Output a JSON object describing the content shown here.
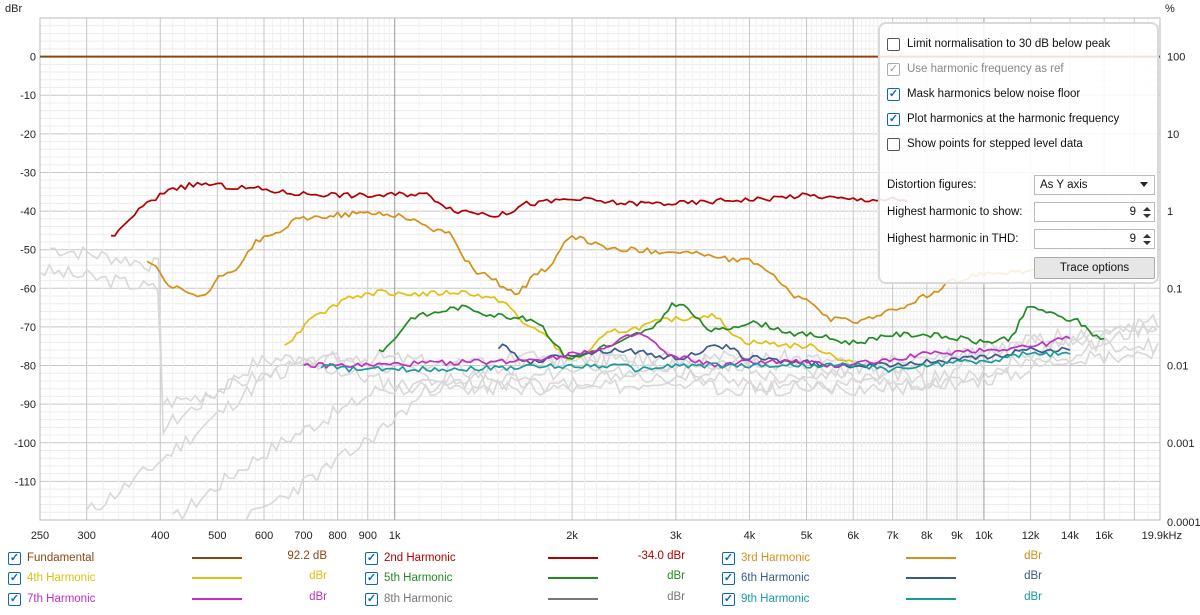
{
  "chart_data": {
    "type": "line",
    "ylabel_left": "dBr",
    "ylabel_right": "%",
    "xunit": "Hz",
    "xscale": "log",
    "xlim": [
      250,
      19900
    ],
    "ylim": [
      -120,
      10
    ],
    "x_ticks": [
      "250",
      "300",
      "400",
      "500",
      "600",
      "700",
      "800",
      "900",
      "1k",
      "2k",
      "3k",
      "4k",
      "5k",
      "6k",
      "7k",
      "8k",
      "9k",
      "10k",
      "12k",
      "14k",
      "16k",
      "19.9kHz"
    ],
    "y_ticks_left": [
      "0",
      "-10",
      "-20",
      "-30",
      "-40",
      "-50",
      "-60",
      "-70",
      "-80",
      "-90",
      "-100",
      "-110"
    ],
    "y_ticks_right": [
      "100",
      "10",
      "1",
      "0.1",
      "0.01",
      "0.001",
      "0.0001"
    ],
    "grid": true,
    "series": [
      {
        "name": "Fundamental",
        "color": "#8b4513",
        "x": [
          250,
          19900
        ],
        "y": [
          0,
          0
        ]
      },
      {
        "name": "2nd Harmonic",
        "color": "#b00000",
        "x": [
          330,
          350,
          380,
          420,
          470,
          550,
          700,
          900,
          1100,
          1300,
          1500,
          1700,
          2000,
          2500,
          3000,
          4000,
          5000,
          6000,
          7000,
          7400
        ],
        "y": [
          -47,
          -43,
          -38,
          -34,
          -33,
          -34,
          -35.5,
          -36,
          -35.5,
          -40,
          -41,
          -38,
          -37,
          -38,
          -38,
          -37,
          -36,
          -37,
          -37,
          -37.5
        ]
      },
      {
        "name": "3rd Harmonic",
        "color": "#d4901a",
        "x": [
          380,
          420,
          470,
          520,
          600,
          700,
          800,
          900,
          1000,
          1200,
          1400,
          1600,
          1800,
          2000,
          2400,
          3000,
          4000,
          5000,
          5500,
          6000,
          7000,
          8000,
          9000,
          10000,
          12000,
          14000
        ],
        "y": [
          -53,
          -60,
          -62,
          -56,
          -47,
          -42,
          -41,
          -40.5,
          -41,
          -45,
          -56,
          -61,
          -55,
          -47,
          -50,
          -50.5,
          -53,
          -63,
          -68,
          -68.5,
          -66,
          -62,
          -58,
          -56,
          -55.5,
          -56
        ]
      },
      {
        "name": "4th Harmonic",
        "color": "#e0c010",
        "x": [
          650,
          750,
          850,
          950,
          1100,
          1300,
          1500,
          1700,
          2000,
          2400,
          3000,
          3400,
          4000,
          5000,
          6000
        ],
        "y": [
          -74,
          -66,
          -62,
          -61,
          -61.5,
          -61,
          -63,
          -70,
          -78,
          -71,
          -68,
          -67,
          -74,
          -75,
          -79
        ]
      },
      {
        "name": "5th Harmonic",
        "color": "#228b22",
        "x": [
          940,
          1100,
          1300,
          1500,
          1700,
          2000,
          2300,
          2700,
          3000,
          3500,
          4000,
          5000,
          6000,
          7000,
          8000,
          9000,
          10000,
          11000,
          12000,
          14000,
          16000
        ],
        "y": [
          -76,
          -67,
          -65,
          -67,
          -68,
          -78,
          -75,
          -71,
          -64,
          -71,
          -69,
          -72,
          -74,
          -72,
          -72,
          -73,
          -74,
          -73,
          -65,
          -68,
          -73
        ]
      },
      {
        "name": "6th Harmonic",
        "color": "#3a5a8a",
        "x": [
          1500,
          1700,
          2000,
          2400,
          3000,
          3600,
          4000,
          4800,
          5500,
          6500,
          8000,
          10000,
          12000,
          14000
        ],
        "y": [
          -75,
          -79,
          -77,
          -76,
          -78,
          -75,
          -78,
          -79,
          -80,
          -80,
          -79,
          -78,
          -76,
          -76
        ]
      },
      {
        "name": "7th Harmonic",
        "color": "#c030c0",
        "x": [
          700,
          800,
          1500,
          1800,
          2200,
          2600,
          3000,
          3600,
          4000,
          4800,
          5500,
          6500,
          8000,
          10000,
          12000,
          14000
        ],
        "y": [
          -80,
          -80,
          -79,
          -78,
          -76,
          -72,
          -78,
          -80,
          -79,
          -79,
          -80,
          -79,
          -77,
          -76,
          -75,
          -73
        ]
      },
      {
        "name": "9th Harmonic",
        "color": "#1a9a9a",
        "x": [
          750,
          850,
          1000,
          2400,
          2600,
          3000,
          4000,
          5000,
          6000,
          7000,
          8000,
          9000,
          10000,
          12000,
          14000
        ],
        "y": [
          -80,
          -81,
          -81,
          -80,
          -81,
          -80,
          -80,
          -80,
          -80,
          -81,
          -80,
          -79,
          -79,
          -77,
          -77
        ]
      }
    ]
  },
  "options": {
    "limit_normalisation": {
      "label": "Limit normalisation to 30 dB below peak",
      "checked": false
    },
    "use_harmonic_freq": {
      "label": "Use harmonic frequency as ref",
      "checked": true,
      "disabled": true
    },
    "mask_harmonics": {
      "label": "Mask harmonics below noise floor",
      "checked": true
    },
    "plot_harmonics": {
      "label": "Plot harmonics at the harmonic frequency",
      "checked": true
    },
    "show_points": {
      "label": "Show points for stepped level data",
      "checked": false
    },
    "distortion_figures_label": "Distortion figures:",
    "distortion_figures_value": "As Y axis",
    "highest_show_label": "Highest harmonic to show:",
    "highest_show_value": "9",
    "highest_thd_label": "Highest harmonic in THD:",
    "highest_thd_value": "9",
    "trace_options_label": "Trace options"
  },
  "legend": [
    {
      "name": "Fundamental",
      "color": "#8b4513",
      "value": "92.2 dB",
      "checked": true
    },
    {
      "name": "2nd Harmonic",
      "color": "#b00000",
      "value": "-34.0 dBr",
      "checked": true
    },
    {
      "name": "3rd Harmonic",
      "color": "#d4901a",
      "value": "dBr",
      "checked": true
    },
    {
      "name": "4th Harmonic",
      "color": "#e0c010",
      "value": "dBr",
      "checked": true
    },
    {
      "name": "5th Harmonic",
      "color": "#228b22",
      "value": "dBr",
      "checked": true
    },
    {
      "name": "6th Harmonic",
      "color": "#3a5a8a",
      "value": "dBr",
      "checked": true
    },
    {
      "name": "7th Harmonic",
      "color": "#c030c0",
      "value": "dBr",
      "checked": true
    },
    {
      "name": "8th Harmonic",
      "color": "#777777",
      "value": "dBr",
      "checked": true
    },
    {
      "name": "9th Harmonic",
      "color": "#1a9a9a",
      "value": "dBr",
      "checked": true
    }
  ]
}
